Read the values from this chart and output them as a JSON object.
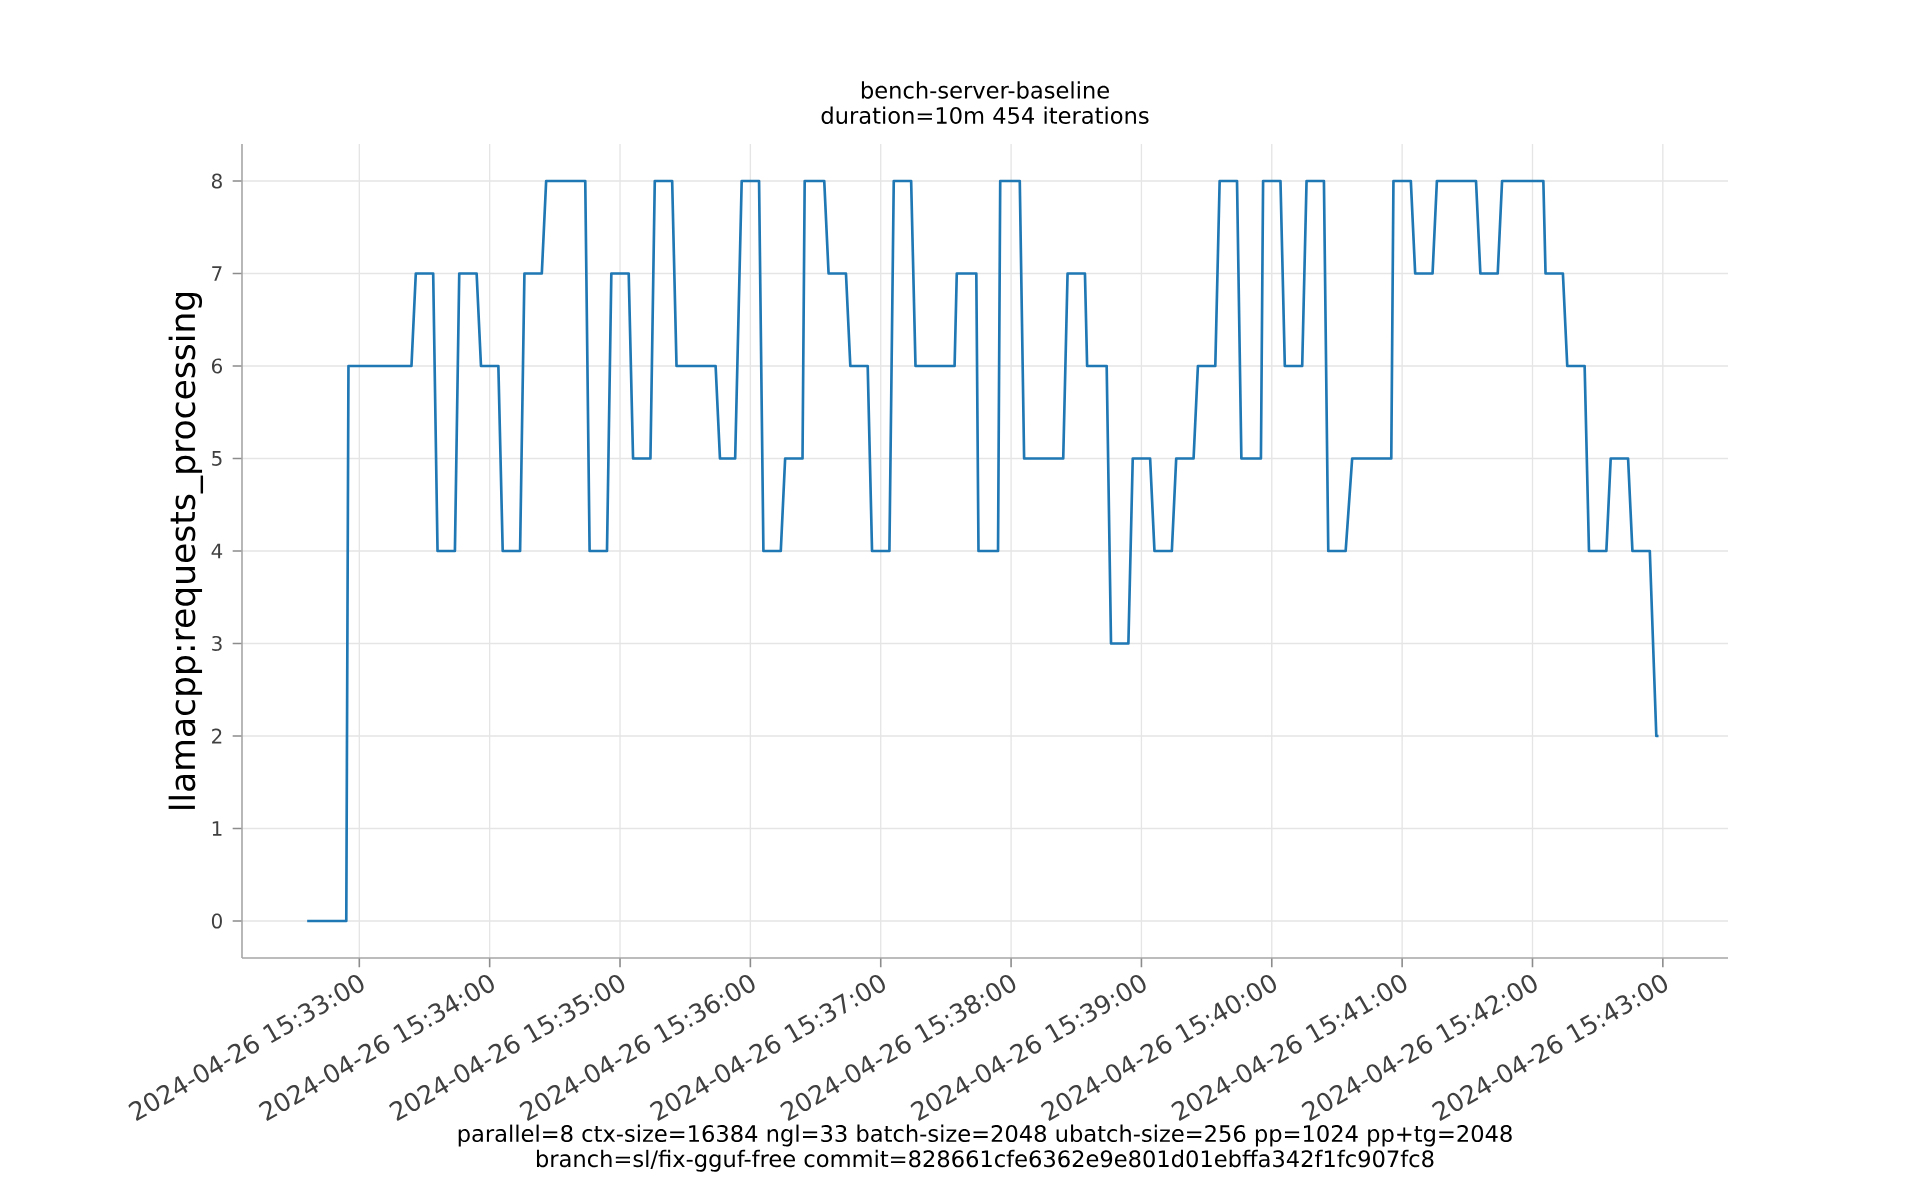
{
  "chart_data": {
    "type": "step",
    "title": "bench-server-baseline",
    "subtitle": "duration=10m 454 iterations",
    "ylabel": "llamacpp:requests_processing",
    "xlabel": "parallel=8 ctx-size=16384 ngl=33 batch-size=2048 ubatch-size=256 pp=1024 pp+tg=2048",
    "annotations": [
      "branch=sl/fix-gguf-free commit=828661cfe6362e9e801d01ebffa342f1fc907fc8"
    ],
    "x": [
      "2024-04-26T15:32:36",
      "2024-04-26T15:32:54",
      "2024-04-26T15:32:55",
      "2024-04-26T15:33:24",
      "2024-04-26T15:33:26",
      "2024-04-26T15:33:34",
      "2024-04-26T15:33:36",
      "2024-04-26T15:33:44",
      "2024-04-26T15:33:46",
      "2024-04-26T15:33:54",
      "2024-04-26T15:33:56",
      "2024-04-26T15:34:04",
      "2024-04-26T15:34:06",
      "2024-04-26T15:34:14",
      "2024-04-26T15:34:16",
      "2024-04-26T15:34:24",
      "2024-04-26T15:34:26",
      "2024-04-26T15:34:44",
      "2024-04-26T15:34:46",
      "2024-04-26T15:34:54",
      "2024-04-26T15:34:56",
      "2024-04-26T15:35:04",
      "2024-04-26T15:35:06",
      "2024-04-26T15:35:14",
      "2024-04-26T15:35:16",
      "2024-04-26T15:35:24",
      "2024-04-26T15:35:26",
      "2024-04-26T15:35:44",
      "2024-04-26T15:35:46",
      "2024-04-26T15:35:53",
      "2024-04-26T15:35:56",
      "2024-04-26T15:36:04",
      "2024-04-26T15:36:06",
      "2024-04-26T15:36:14",
      "2024-04-26T15:36:16",
      "2024-04-26T15:36:24",
      "2024-04-26T15:36:25",
      "2024-04-26T15:36:34",
      "2024-04-26T15:36:36",
      "2024-04-26T15:36:44",
      "2024-04-26T15:36:46",
      "2024-04-26T15:36:54",
      "2024-04-26T15:36:56",
      "2024-04-26T15:37:04",
      "2024-04-26T15:37:06",
      "2024-04-26T15:37:14",
      "2024-04-26T15:37:16",
      "2024-04-26T15:37:34",
      "2024-04-26T15:37:35",
      "2024-04-26T15:37:44",
      "2024-04-26T15:37:45",
      "2024-04-26T15:37:54",
      "2024-04-26T15:37:55",
      "2024-04-26T15:38:04",
      "2024-04-26T15:38:06",
      "2024-04-26T15:38:24",
      "2024-04-26T15:38:26",
      "2024-04-26T15:38:34",
      "2024-04-26T15:38:35",
      "2024-04-26T15:38:44",
      "2024-04-26T15:38:46",
      "2024-04-26T15:38:54",
      "2024-04-26T15:38:56",
      "2024-04-26T15:39:04",
      "2024-04-26T15:39:06",
      "2024-04-26T15:39:14",
      "2024-04-26T15:39:16",
      "2024-04-26T15:39:24",
      "2024-04-26T15:39:26",
      "2024-04-26T15:39:34",
      "2024-04-26T15:39:36",
      "2024-04-26T15:39:44",
      "2024-04-26T15:39:46",
      "2024-04-26T15:39:55",
      "2024-04-26T15:39:56",
      "2024-04-26T15:40:04",
      "2024-04-26T15:40:06",
      "2024-04-26T15:40:14",
      "2024-04-26T15:40:16",
      "2024-04-26T15:40:24",
      "2024-04-26T15:40:26",
      "2024-04-26T15:40:34",
      "2024-04-26T15:40:37",
      "2024-04-26T15:40:55",
      "2024-04-26T15:40:56",
      "2024-04-26T15:41:04",
      "2024-04-26T15:41:06",
      "2024-04-26T15:41:14",
      "2024-04-26T15:41:16",
      "2024-04-26T15:41:34",
      "2024-04-26T15:41:36",
      "2024-04-26T15:41:44",
      "2024-04-26T15:41:46",
      "2024-04-26T15:42:05",
      "2024-04-26T15:42:06",
      "2024-04-26T15:42:14",
      "2024-04-26T15:42:16",
      "2024-04-26T15:42:24",
      "2024-04-26T15:42:26",
      "2024-04-26T15:42:34",
      "2024-04-26T15:42:36",
      "2024-04-26T15:42:44",
      "2024-04-26T15:42:46",
      "2024-04-26T15:42:54",
      "2024-04-26T15:42:57",
      "2024-04-26T15:42:58"
    ],
    "values": [
      0,
      0,
      6,
      6,
      7,
      7,
      4,
      4,
      7,
      7,
      6,
      6,
      4,
      4,
      7,
      7,
      8,
      8,
      4,
      4,
      7,
      7,
      5,
      5,
      8,
      8,
      6,
      6,
      5,
      5,
      8,
      8,
      4,
      4,
      5,
      5,
      8,
      8,
      7,
      7,
      6,
      6,
      4,
      4,
      8,
      8,
      6,
      6,
      7,
      7,
      4,
      4,
      8,
      8,
      5,
      5,
      7,
      7,
      6,
      6,
      3,
      3,
      5,
      5,
      4,
      4,
      5,
      5,
      6,
      6,
      8,
      8,
      5,
      5,
      8,
      8,
      6,
      6,
      8,
      8,
      4,
      4,
      5,
      5,
      8,
      8,
      7,
      7,
      8,
      8,
      7,
      7,
      8,
      8,
      7,
      7,
      6,
      6,
      4,
      4,
      5,
      5,
      4,
      4,
      2,
      2
    ],
    "color": "#1f77b4",
    "xlim": [
      "2024-04-26T15:32:06",
      "2024-04-26T15:43:30"
    ],
    "ylim": [
      -0.4,
      8.4
    ],
    "xticks": [
      {
        "value": "2024-04-26T15:33:00",
        "label": "2024-04-26 15:33:00"
      },
      {
        "value": "2024-04-26T15:34:00",
        "label": "2024-04-26 15:34:00"
      },
      {
        "value": "2024-04-26T15:35:00",
        "label": "2024-04-26 15:35:00"
      },
      {
        "value": "2024-04-26T15:36:00",
        "label": "2024-04-26 15:36:00"
      },
      {
        "value": "2024-04-26T15:37:00",
        "label": "2024-04-26 15:37:00"
      },
      {
        "value": "2024-04-26T15:38:00",
        "label": "2024-04-26 15:38:00"
      },
      {
        "value": "2024-04-26T15:39:00",
        "label": "2024-04-26 15:39:00"
      },
      {
        "value": "2024-04-26T15:40:00",
        "label": "2024-04-26 15:40:00"
      },
      {
        "value": "2024-04-26T15:41:00",
        "label": "2024-04-26 15:41:00"
      },
      {
        "value": "2024-04-26T15:42:00",
        "label": "2024-04-26 15:42:00"
      },
      {
        "value": "2024-04-26T15:43:00",
        "label": "2024-04-26 15:43:00"
      }
    ],
    "yticks": [
      0,
      1,
      2,
      3,
      4,
      5,
      6,
      7,
      8
    ],
    "grid": true
  }
}
